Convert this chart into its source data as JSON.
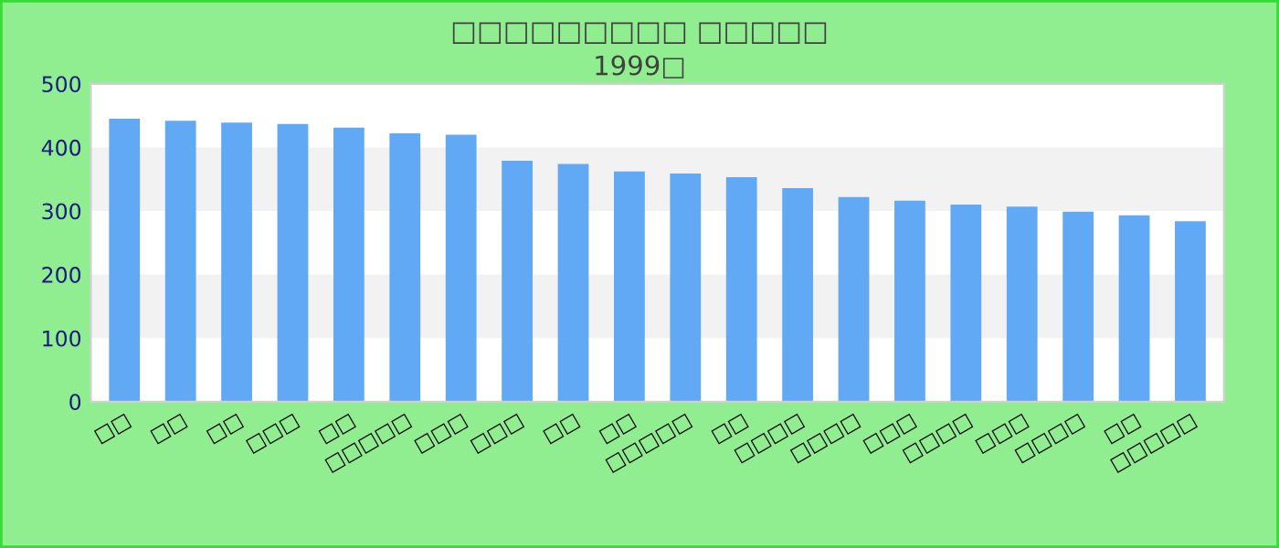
{
  "chart_data": {
    "type": "bar",
    "title": "□□□□□□□□□ □□□□□",
    "subtitle": "1999□",
    "categories": [
      "□□",
      "□□",
      "□□",
      "□□□",
      "□□",
      "□□□□□",
      "□□□",
      "□□□",
      "□□",
      "□□",
      "□□□□□",
      "□□",
      "□□□□",
      "□□□□",
      "□□□",
      "□□□□",
      "□□□",
      "□□□□",
      "□□",
      "□□□□□"
    ],
    "values": [
      445,
      442,
      439,
      437,
      431,
      422,
      420,
      379,
      374,
      362,
      359,
      353,
      336,
      322,
      316,
      310,
      307,
      299,
      293,
      284
    ],
    "color": "#61a8f5",
    "ylim": [
      0,
      500
    ],
    "yticks": [
      0,
      100,
      200,
      300,
      400,
      500
    ],
    "bands": [
      {
        "axis": "y",
        "from": 100,
        "to": 200,
        "color": "#f2f2f2"
      },
      {
        "axis": "y",
        "from": 300,
        "to": 400,
        "color": "#f2f2f2"
      }
    ]
  }
}
